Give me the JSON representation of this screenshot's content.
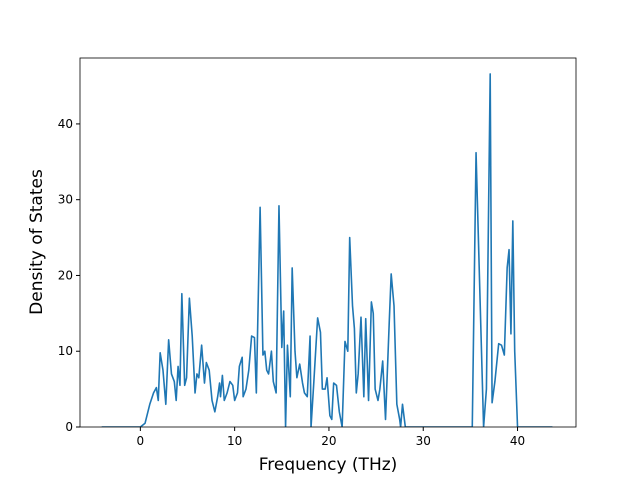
{
  "chart_data": {
    "type": "line",
    "x_label": "Frequency (THz)",
    "y_label": "Density of States",
    "x": [
      -4.1,
      0,
      0.5,
      1,
      1.4,
      1.7,
      1.9,
      2.1,
      2.4,
      2.7,
      3,
      3.3,
      3.6,
      3.8,
      4,
      4.2,
      4.4,
      4.7,
      4.9,
      5.2,
      5.5,
      5.8,
      6,
      6.2,
      6.5,
      6.8,
      7,
      7.3,
      7.6,
      7.9,
      8.2,
      8.4,
      8.5,
      8.7,
      8.9,
      9.2,
      9.5,
      9.8,
      10,
      10.3,
      10.5,
      10.8,
      10.9,
      11.2,
      11.5,
      11.8,
      12.1,
      12.3,
      12.7,
      13,
      13.2,
      13.4,
      13.6,
      13.9,
      14.1,
      14.4,
      14.7,
      15,
      15.2,
      15.4,
      15.6,
      15.9,
      16.1,
      16.4,
      16.6,
      16.9,
      17.2,
      17.4,
      17.7,
      18,
      18.1,
      18.4,
      18.8,
      19.1,
      19.3,
      19.6,
      19.8,
      20.1,
      20.3,
      20.5,
      20.8,
      21.1,
      21.4,
      21.7,
      22,
      22.2,
      22.5,
      22.7,
      22.9,
      23.1,
      23.4,
      23.7,
      23.9,
      24.2,
      24.5,
      24.7,
      24.9,
      25.2,
      25.4,
      25.7,
      26,
      26.4,
      26.6,
      26.9,
      27.2,
      27.5,
      27.6,
      27.8,
      28.1,
      35.2,
      35.6,
      36,
      36.4,
      36.7,
      37.1,
      37.3,
      37.6,
      38,
      38.3,
      38.6,
      38.9,
      39.1,
      39.3,
      39.5,
      39.7,
      40,
      43.7
    ],
    "series": [
      {
        "color": "#1f77b4",
        "values": [
          0,
          0,
          0.5,
          3,
          4.5,
          5.2,
          3.5,
          9.8,
          7.5,
          3,
          11.5,
          7,
          6,
          3.5,
          8,
          5.5,
          17.6,
          5.5,
          6.5,
          17,
          12,
          4.5,
          7,
          6.5,
          10.8,
          5.8,
          8.5,
          7.5,
          3.5,
          2,
          4,
          5.8,
          4,
          6.8,
          3.5,
          4.5,
          6,
          5.5,
          3.5,
          4.5,
          8,
          9.2,
          4,
          5,
          7.5,
          12,
          11.8,
          4.5,
          29,
          9.5,
          10,
          7.5,
          7,
          10,
          6,
          4.5,
          29.2,
          10.5,
          15.3,
          0,
          10.8,
          4,
          21,
          10,
          6.5,
          8.3,
          5.8,
          4.5,
          4,
          12,
          0,
          6,
          14.4,
          12.5,
          5,
          5,
          6.5,
          1.5,
          1,
          5.8,
          5.5,
          2,
          0,
          11.3,
          10,
          25,
          16,
          13,
          4.5,
          7,
          14.5,
          4,
          14.3,
          3.5,
          16.5,
          15,
          5,
          3.5,
          5,
          8.7,
          1,
          14,
          20.2,
          16,
          3,
          1,
          0,
          3,
          0,
          0,
          36.2,
          18,
          0,
          5,
          46.6,
          3.2,
          6,
          11,
          10.8,
          9.5,
          21,
          23.4,
          12.3,
          27.2,
          10,
          0,
          0
        ]
      }
    ],
    "xlim": [
      -6.4,
      46.2
    ],
    "ylim": [
      0,
      48.7
    ],
    "xticks": [
      0,
      10,
      20,
      30,
      40
    ],
    "yticks": [
      0,
      10,
      20,
      30,
      40
    ]
  }
}
